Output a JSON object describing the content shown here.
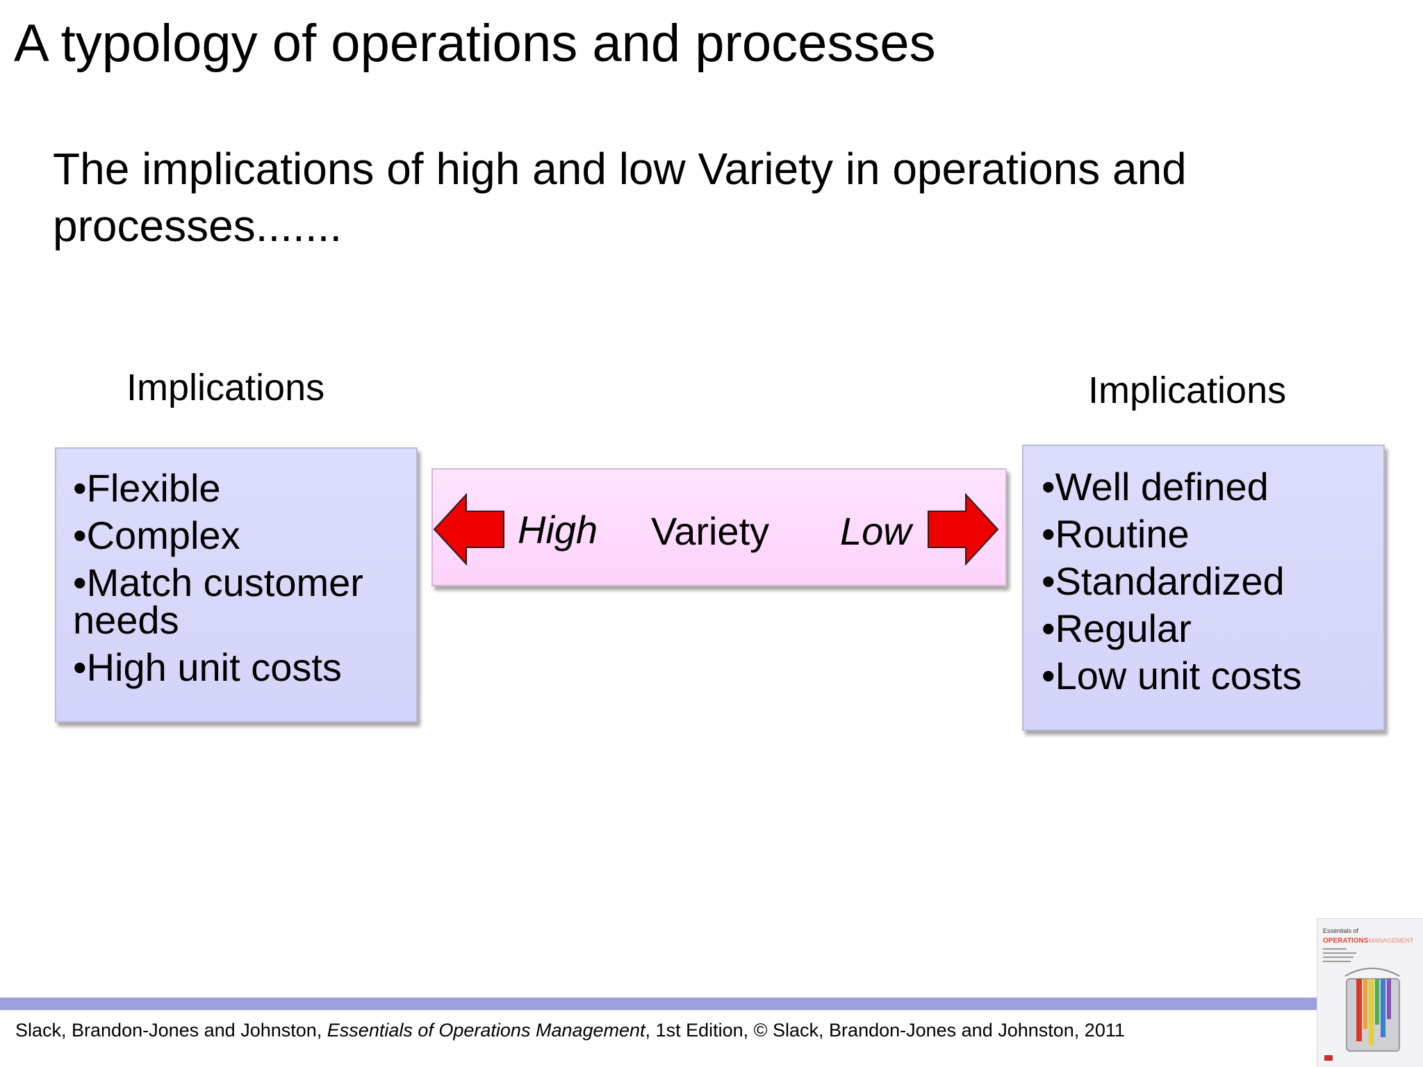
{
  "slide": {
    "title": "A typology of operations and processes",
    "subtitle": "The implications of high and low Variety in operations and processes......."
  },
  "left_panel": {
    "heading": "Implications",
    "items": [
      "Flexible",
      "Complex",
      "Match customer needs",
      "High unit costs"
    ]
  },
  "right_panel": {
    "heading": "Implications",
    "items": [
      "Well defined",
      "Routine",
      "Standardized",
      "Regular",
      "Low unit costs"
    ]
  },
  "variety_scale": {
    "high_label": "High",
    "center_label": "Variety",
    "low_label": "Low",
    "arrow_color": "#ee0000"
  },
  "footer": {
    "authors": "Slack, Brandon-Jones and Johnston, ",
    "book_title": "Essentials of Operations Management",
    "rest": ", 1st Edition, © Slack, Brandon-Jones and Johnston, 2011",
    "bar_color": "#9d9fdf"
  },
  "book_cover": {
    "line1": "Essentials of",
    "line2": "OPERATIONS",
    "line3": "MANAGEMENT"
  }
}
